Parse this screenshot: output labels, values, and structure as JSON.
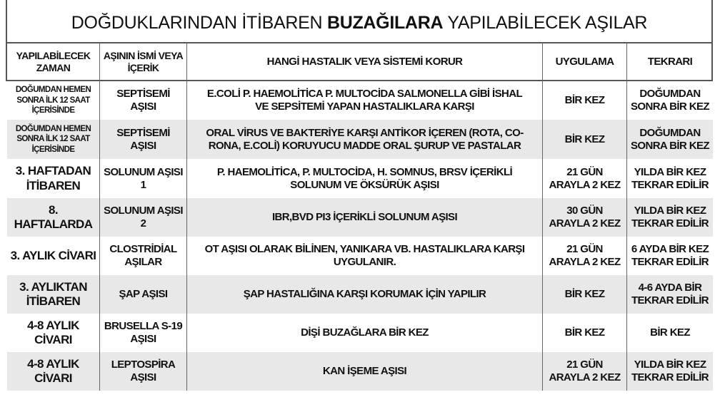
{
  "title": {
    "prefix": "DOĞDUKLARINDAN İTİBAREN ",
    "bold": "BUZAĞILARA",
    "suffix": " YAPILABİLECEK AŞILAR"
  },
  "headers": [
    "YAPILABİLECEK ZAMAN",
    "AŞININ İSMİ VEYA İÇERİK",
    "HANGİ HASTALIK VEYA SİSTEMİ KORUR",
    "UYGULAMA",
    "TEKRARI"
  ],
  "rows": [
    {
      "zaman": "DOĞUMDAN HEMEN SONRA İLK 12 SAAT İÇERİSİNDE",
      "asi": "SEPTİSEMİ AŞISI",
      "korur": "E.COLİ P. HAEMOLİTİCA P. MULTOCİDA SALMONELLA GİBİ İSHAL VE SEPSİTEMİ YAPAN HASTALIKLARA KARŞI",
      "uygulama": "BİR KEZ",
      "tekrar": "DOĞUMDAN SONRA BİR KEZ"
    },
    {
      "zaman": "DOĞUMDAN HEMEN SONRA İLK 12 SAAT İÇERİSİNDE",
      "asi": "SEPTİSEMİ AŞISI",
      "korur": "ORAL VİRUS VE BAKTERİYE KARŞI ANTİKOR İÇEREN (ROTA, CO-RONA, E.COLİ) KORUYUCU MADDE ORAL ŞURUP VE PASTALAR",
      "uygulama": "BİR KEZ",
      "tekrar": "DOĞUMDAN SONRA BİR KEZ"
    },
    {
      "zaman": "3. HAFTADAN İTİBAREN",
      "asi": "SOLUNUM AŞISI 1",
      "korur": "P. HAEMOLİTİCA, P. MULTOCİDA, H. SOMNUS, BRSV İÇERİKLİ SOLUNUM VE ÖKSÜRÜK AŞISI",
      "uygulama": "21 GÜN ARAYLA 2 KEZ",
      "tekrar": "YILDA BİR KEZ TEKRAR EDİLİR"
    },
    {
      "zaman": "8. HAFTALARDA",
      "asi": "SOLUNUM AŞISI 2",
      "korur": "IBR,BVD PI3 İÇERİKLİ SOLUNUM AŞISI",
      "uygulama": "30 GÜN ARAYLA 2 KEZ",
      "tekrar": "YILDA BİR KEZ TEKRAR EDİLİR"
    },
    {
      "zaman": "3. AYLIK CİVARI",
      "asi": "CLOSTRİDİAL AŞILAR",
      "korur": "OT AŞISI OLARAK BİLİNEN, YANIKARA VB. HASTALIKLARA KARŞI UYGULANIR.",
      "uygulama": "21 GÜN ARAYLA 2 KEZ",
      "tekrar": "6 AYDA BİR KEZ TEKRAR EDİLİR"
    },
    {
      "zaman": "3. AYLIKTAN İTİBAREN",
      "asi": "ŞAP AŞISI",
      "korur": "ŞAP HASTALIĞINA KARŞI KORUMAK İÇİN YAPILIR",
      "uygulama": "BİR KEZ",
      "tekrar": "4-6 AYDA BİR TEKRAR EDİLİR"
    },
    {
      "zaman": "4-8 AYLIK CİVARI",
      "asi": "BRUSELLA S-19 AŞISI",
      "korur": "DİŞİ BUZAĞLARA BİR KEZ",
      "uygulama": "BİR KEZ",
      "tekrar": "BİR KEZ"
    },
    {
      "zaman": "4-8 AYLIK CİVARI",
      "asi": "LEPTOSPİRA AŞISI",
      "korur": "KAN İŞEME AŞISI",
      "uygulama": "21 GÜN ARAYLA 2 KEZ",
      "tekrar": "YILDA BİR KEZ TEKRAR EDİLİR"
    }
  ]
}
